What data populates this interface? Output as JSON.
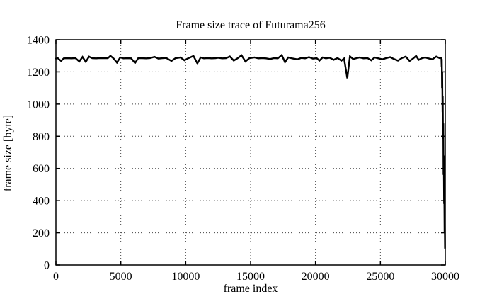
{
  "window": {
    "background": "#ffffff"
  },
  "chart_data": {
    "type": "line",
    "title": "Frame size trace of Futurama256",
    "xlabel": "frame index",
    "ylabel": "frame size [byte]",
    "xlim": [
      0,
      30000
    ],
    "ylim": [
      0,
      1400
    ],
    "xticks": [
      0,
      5000,
      10000,
      15000,
      20000,
      25000,
      30000
    ],
    "yticks": [
      0,
      200,
      400,
      600,
      800,
      1000,
      1200,
      1400
    ],
    "grid": true,
    "legend": "none",
    "line_color": "#000000",
    "grid_color": "#444444",
    "annotations": {
      "baseline_value": 1285,
      "notable_dip": {
        "x": 22450,
        "y": 1160
      },
      "final_drop": {
        "x_start": 29700,
        "y_end": 105
      }
    },
    "series": [
      {
        "name": "frame size",
        "points": [
          [
            0,
            1283
          ],
          [
            150,
            1285
          ],
          [
            400,
            1268
          ],
          [
            600,
            1284
          ],
          [
            900,
            1285
          ],
          [
            1200,
            1284
          ],
          [
            1500,
            1286
          ],
          [
            1800,
            1265
          ],
          [
            2050,
            1293
          ],
          [
            2300,
            1262
          ],
          [
            2550,
            1295
          ],
          [
            2800,
            1285
          ],
          [
            3100,
            1284
          ],
          [
            3400,
            1286
          ],
          [
            3700,
            1285
          ],
          [
            4000,
            1285
          ],
          [
            4200,
            1300
          ],
          [
            4450,
            1283
          ],
          [
            4700,
            1258
          ],
          [
            4950,
            1290
          ],
          [
            5200,
            1284
          ],
          [
            5500,
            1285
          ],
          [
            5800,
            1284
          ],
          [
            6100,
            1255
          ],
          [
            6350,
            1286
          ],
          [
            6650,
            1285
          ],
          [
            6950,
            1284
          ],
          [
            7250,
            1286
          ],
          [
            7600,
            1294
          ],
          [
            7900,
            1283
          ],
          [
            8200,
            1285
          ],
          [
            8500,
            1287
          ],
          [
            8900,
            1268
          ],
          [
            9200,
            1285
          ],
          [
            9600,
            1290
          ],
          [
            9900,
            1272
          ],
          [
            10200,
            1285
          ],
          [
            10600,
            1299
          ],
          [
            10900,
            1253
          ],
          [
            11150,
            1290
          ],
          [
            11400,
            1284
          ],
          [
            11700,
            1286
          ],
          [
            12000,
            1284
          ],
          [
            12300,
            1285
          ],
          [
            12500,
            1288
          ],
          [
            12800,
            1284
          ],
          [
            13100,
            1285
          ],
          [
            13400,
            1296
          ],
          [
            13700,
            1270
          ],
          [
            14000,
            1285
          ],
          [
            14300,
            1303
          ],
          [
            14600,
            1265
          ],
          [
            14900,
            1285
          ],
          [
            15300,
            1290
          ],
          [
            15600,
            1284
          ],
          [
            15900,
            1286
          ],
          [
            16200,
            1284
          ],
          [
            16500,
            1280
          ],
          [
            16800,
            1286
          ],
          [
            17100,
            1284
          ],
          [
            17400,
            1305
          ],
          [
            17650,
            1260
          ],
          [
            17900,
            1290
          ],
          [
            18200,
            1284
          ],
          [
            18600,
            1278
          ],
          [
            18900,
            1287
          ],
          [
            19200,
            1284
          ],
          [
            19500,
            1292
          ],
          [
            19800,
            1283
          ],
          [
            20100,
            1285
          ],
          [
            20300,
            1270
          ],
          [
            20550,
            1290
          ],
          [
            20800,
            1284
          ],
          [
            21100,
            1288
          ],
          [
            21400,
            1275
          ],
          [
            21700,
            1286
          ],
          [
            22000,
            1270
          ],
          [
            22200,
            1283
          ],
          [
            22450,
            1160
          ],
          [
            22650,
            1297
          ],
          [
            22900,
            1280
          ],
          [
            23150,
            1285
          ],
          [
            23400,
            1290
          ],
          [
            23700,
            1284
          ],
          [
            24000,
            1286
          ],
          [
            24300,
            1272
          ],
          [
            24550,
            1290
          ],
          [
            24850,
            1284
          ],
          [
            25150,
            1278
          ],
          [
            25450,
            1286
          ],
          [
            25750,
            1292
          ],
          [
            26050,
            1280
          ],
          [
            26350,
            1270
          ],
          [
            26650,
            1286
          ],
          [
            26950,
            1295
          ],
          [
            27250,
            1268
          ],
          [
            27550,
            1285
          ],
          [
            27750,
            1300
          ],
          [
            27950,
            1275
          ],
          [
            28200,
            1285
          ],
          [
            28450,
            1290
          ],
          [
            28700,
            1284
          ],
          [
            29000,
            1278
          ],
          [
            29300,
            1295
          ],
          [
            29550,
            1286
          ],
          [
            29700,
            1288
          ],
          [
            29720,
            1230
          ],
          [
            29735,
            1280
          ],
          [
            29750,
            1100
          ],
          [
            29765,
            1200
          ],
          [
            29785,
            950
          ],
          [
            29805,
            1050
          ],
          [
            29825,
            780
          ],
          [
            29845,
            880
          ],
          [
            29865,
            560
          ],
          [
            29885,
            680
          ],
          [
            29905,
            380
          ],
          [
            29925,
            480
          ],
          [
            29945,
            200
          ],
          [
            29960,
            260
          ],
          [
            29980,
            105
          ]
        ]
      }
    ]
  }
}
